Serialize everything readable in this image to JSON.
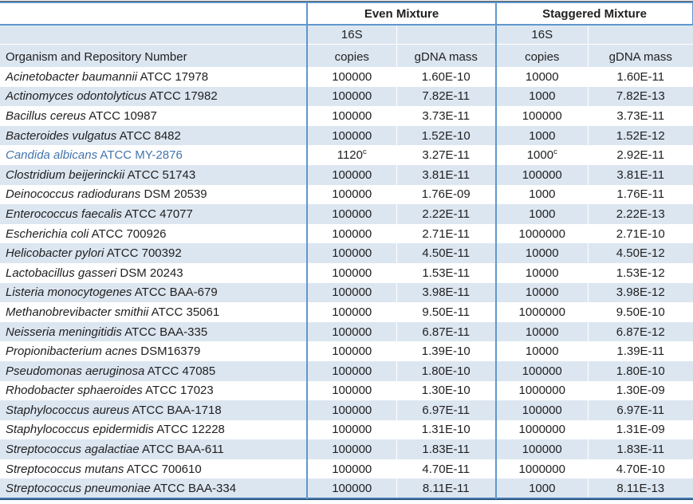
{
  "header": {
    "group_even": "Even Mixture",
    "group_staggered": "Staggered Mixture",
    "organism_col": "Organism and Repository Number",
    "copies_line1": "16S",
    "copies_line2": "copies",
    "gdna_label": "gDNA mass"
  },
  "colors": {
    "band_blue": "#dce6f1",
    "border_blue": "#5f97cc",
    "border_blue_dark": "#4779b0",
    "highlight_text_blue": "#4374ad"
  },
  "rows": [
    {
      "name_italic": "Acinetobacter baumannii",
      "name_plain": "ATCC 17978",
      "highlight": false,
      "even_copies": "100000",
      "even_copies_sup": "",
      "even_gdna": "1.60E-10",
      "stag_copies": "10000",
      "stag_copies_sup": "",
      "stag_gdna": "1.60E-11"
    },
    {
      "name_italic": "Actinomyces odontolyticus",
      "name_plain": "ATCC 17982",
      "highlight": false,
      "even_copies": "100000",
      "even_copies_sup": "",
      "even_gdna": "7.82E-11",
      "stag_copies": "1000",
      "stag_copies_sup": "",
      "stag_gdna": "7.82E-13"
    },
    {
      "name_italic": "Bacillus cereus",
      "name_plain": "ATCC 10987",
      "highlight": false,
      "even_copies": "100000",
      "even_copies_sup": "",
      "even_gdna": "3.73E-11",
      "stag_copies": "100000",
      "stag_copies_sup": "",
      "stag_gdna": "3.73E-11"
    },
    {
      "name_italic": "Bacteroides vulgatus",
      "name_plain": "ATCC 8482",
      "highlight": false,
      "even_copies": "100000",
      "even_copies_sup": "",
      "even_gdna": "1.52E-10",
      "stag_copies": "1000",
      "stag_copies_sup": "",
      "stag_gdna": "1.52E-12"
    },
    {
      "name_italic": "Candida albicans",
      "name_plain": "ATCC MY-2876",
      "highlight": true,
      "even_copies": "1120",
      "even_copies_sup": "c",
      "even_gdna": "3.27E-11",
      "stag_copies": "1000",
      "stag_copies_sup": "c",
      "stag_gdna": "2.92E-11"
    },
    {
      "name_italic": "Clostridium beijerinckii",
      "name_plain": "ATCC 51743",
      "highlight": false,
      "even_copies": "100000",
      "even_copies_sup": "",
      "even_gdna": "3.81E-11",
      "stag_copies": "100000",
      "stag_copies_sup": "",
      "stag_gdna": "3.81E-11"
    },
    {
      "name_italic": "Deinococcus radiodurans",
      "name_plain": "DSM 20539",
      "highlight": false,
      "even_copies": "100000",
      "even_copies_sup": "",
      "even_gdna": "1.76E-09",
      "stag_copies": "1000",
      "stag_copies_sup": "",
      "stag_gdna": "1.76E-11"
    },
    {
      "name_italic": "Enterococcus faecalis",
      "name_plain": "ATCC 47077",
      "highlight": false,
      "even_copies": "100000",
      "even_copies_sup": "",
      "even_gdna": "2.22E-11",
      "stag_copies": "1000",
      "stag_copies_sup": "",
      "stag_gdna": "2.22E-13"
    },
    {
      "name_italic": "Escherichia coli",
      "name_plain": "ATCC 700926",
      "highlight": false,
      "even_copies": "100000",
      "even_copies_sup": "",
      "even_gdna": "2.71E-11",
      "stag_copies": "1000000",
      "stag_copies_sup": "",
      "stag_gdna": "2.71E-10"
    },
    {
      "name_italic": "Helicobacter pylori",
      "name_plain": "ATCC 700392",
      "highlight": false,
      "even_copies": "100000",
      "even_copies_sup": "",
      "even_gdna": "4.50E-11",
      "stag_copies": "10000",
      "stag_copies_sup": "",
      "stag_gdna": "4.50E-12"
    },
    {
      "name_italic": "Lactobacillus gasseri",
      "name_plain": "DSM 20243",
      "highlight": false,
      "even_copies": "100000",
      "even_copies_sup": "",
      "even_gdna": "1.53E-11",
      "stag_copies": "10000",
      "stag_copies_sup": "",
      "stag_gdna": "1.53E-12"
    },
    {
      "name_italic": "Listeria monocytogenes",
      "name_plain": "ATCC BAA-679",
      "highlight": false,
      "even_copies": "100000",
      "even_copies_sup": "",
      "even_gdna": "3.98E-11",
      "stag_copies": "10000",
      "stag_copies_sup": "",
      "stag_gdna": "3.98E-12"
    },
    {
      "name_italic": "Methanobrevibacter smithii",
      "name_plain": "ATCC 35061",
      "highlight": false,
      "even_copies": "100000",
      "even_copies_sup": "",
      "even_gdna": "9.50E-11",
      "stag_copies": "1000000",
      "stag_copies_sup": "",
      "stag_gdna": "9.50E-10"
    },
    {
      "name_italic": "Neisseria meningitidis",
      "name_plain": "ATCC BAA-335",
      "highlight": false,
      "even_copies": "100000",
      "even_copies_sup": "",
      "even_gdna": "6.87E-11",
      "stag_copies": "10000",
      "stag_copies_sup": "",
      "stag_gdna": "6.87E-12"
    },
    {
      "name_italic": "Propionibacterium acnes",
      "name_plain": "DSM16379",
      "highlight": false,
      "even_copies": "100000",
      "even_copies_sup": "",
      "even_gdna": "1.39E-10",
      "stag_copies": "10000",
      "stag_copies_sup": "",
      "stag_gdna": "1.39E-11"
    },
    {
      "name_italic": "Pseudomonas aeruginosa",
      "name_plain": "ATCC 47085",
      "highlight": false,
      "even_copies": "100000",
      "even_copies_sup": "",
      "even_gdna": "1.80E-10",
      "stag_copies": "100000",
      "stag_copies_sup": "",
      "stag_gdna": "1.80E-10"
    },
    {
      "name_italic": "Rhodobacter sphaeroides",
      "name_plain": "ATCC 17023",
      "highlight": false,
      "even_copies": "100000",
      "even_copies_sup": "",
      "even_gdna": "1.30E-10",
      "stag_copies": "1000000",
      "stag_copies_sup": "",
      "stag_gdna": "1.30E-09"
    },
    {
      "name_italic": "Staphylococcus aureus",
      "name_plain": "ATCC BAA-1718",
      "highlight": false,
      "even_copies": "100000",
      "even_copies_sup": "",
      "even_gdna": "6.97E-11",
      "stag_copies": "100000",
      "stag_copies_sup": "",
      "stag_gdna": "6.97E-11"
    },
    {
      "name_italic": "Staphylococcus epidermidis",
      "name_plain": "ATCC 12228",
      "highlight": false,
      "even_copies": "100000",
      "even_copies_sup": "",
      "even_gdna": "1.31E-10",
      "stag_copies": "1000000",
      "stag_copies_sup": "",
      "stag_gdna": "1.31E-09"
    },
    {
      "name_italic": "Streptococcus agalactiae",
      "name_plain": "ATCC BAA-611",
      "highlight": false,
      "even_copies": "100000",
      "even_copies_sup": "",
      "even_gdna": "1.83E-11",
      "stag_copies": "100000",
      "stag_copies_sup": "",
      "stag_gdna": "1.83E-11"
    },
    {
      "name_italic": "Streptococcus mutans",
      "name_plain": "ATCC 700610",
      "highlight": false,
      "even_copies": "100000",
      "even_copies_sup": "",
      "even_gdna": "4.70E-11",
      "stag_copies": "1000000",
      "stag_copies_sup": "",
      "stag_gdna": "4.70E-10"
    },
    {
      "name_italic": "Streptococcus pneumoniae",
      "name_plain": "ATCC BAA-334",
      "highlight": false,
      "even_copies": "100000",
      "even_copies_sup": "",
      "even_gdna": "8.11E-11",
      "stag_copies": "1000",
      "stag_copies_sup": "",
      "stag_gdna": "8.11E-13"
    }
  ]
}
